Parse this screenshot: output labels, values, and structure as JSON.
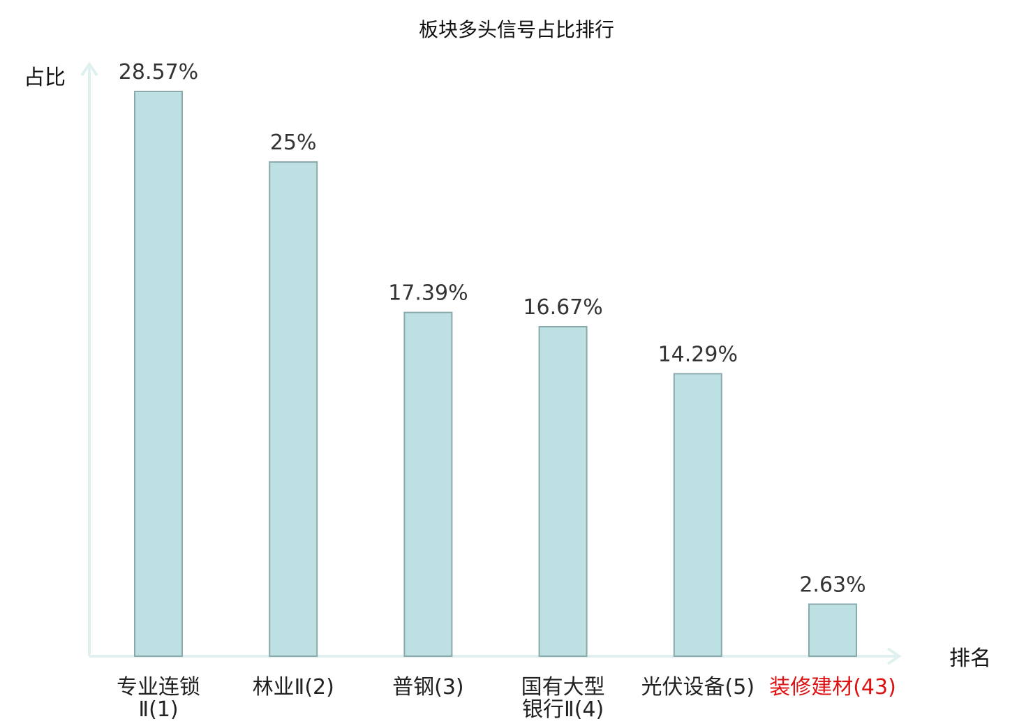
{
  "chart_data": {
    "type": "bar",
    "title": "板块多头信号占比排行",
    "ylabel": "占比",
    "xlabel": "排名",
    "categories": [
      [
        "专业连锁",
        "Ⅱ(1)"
      ],
      [
        "林业Ⅱ(2)"
      ],
      [
        "普钢(3)"
      ],
      [
        "国有大型",
        "银行Ⅱ(4)"
      ],
      [
        "光伏设备(5)"
      ],
      [
        "装修建材(43)"
      ]
    ],
    "values": [
      28.57,
      25,
      17.39,
      16.67,
      14.29,
      2.63
    ],
    "value_labels": [
      "28.57%",
      "25%",
      "17.39%",
      "16.67%",
      "14.29%",
      "2.63%"
    ],
    "highlight_index": 5,
    "colors": {
      "bar_fill": "#bde0e3",
      "bar_stroke": "#8aa9ab",
      "axis": "#dff0ee",
      "highlight_text": "#dd1111"
    },
    "grid": false
  }
}
